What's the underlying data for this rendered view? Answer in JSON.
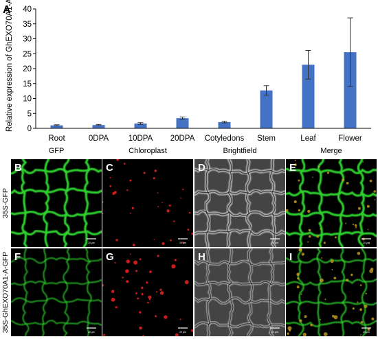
{
  "chart_data": {
    "type": "bar",
    "panel_label": "A",
    "ylabel": "Relative expression of GhEXO70A1-A",
    "xlabel": "",
    "title": "",
    "ylim": [
      0,
      40
    ],
    "yticks": [
      0,
      5,
      10,
      15,
      20,
      25,
      30,
      35,
      40
    ],
    "categories": [
      "Root",
      "0DPA",
      "10DPA",
      "20DPA",
      "Cotyledons",
      "Stem",
      "Leaf",
      "Flower"
    ],
    "values": [
      1.0,
      1.1,
      1.6,
      3.4,
      2.1,
      12.7,
      21.3,
      25.5
    ],
    "errors": [
      0.2,
      0.2,
      0.3,
      0.4,
      0.3,
      1.6,
      4.8,
      11.5
    ],
    "bar_color": "#4472c4",
    "error_color": "#333333",
    "grid": false,
    "legend": "none"
  },
  "micrographs": {
    "column_headers": [
      "GFP",
      "Chloroplast",
      "Brightfield",
      "Merge"
    ],
    "row_labels": [
      "35S-GFP",
      "35S-GhEXO70A1-A-GFP"
    ],
    "panel_letters": [
      "B",
      "C",
      "D",
      "E",
      "F",
      "G",
      "H",
      "I"
    ],
    "scale_bar_label": "20 μm",
    "gfp_color": "#2fd12f",
    "chloroplast_color": "#e02020"
  }
}
